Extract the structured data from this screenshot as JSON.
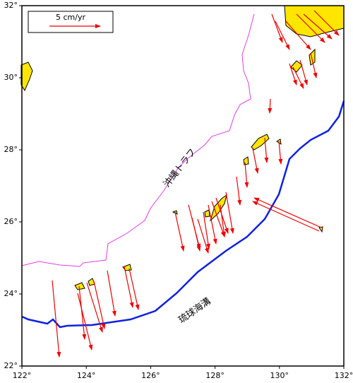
{
  "map": {
    "xlim": [
      122,
      132
    ],
    "ylim": [
      22,
      32
    ],
    "xticks": [
      {
        "value": 122,
        "label": "122°"
      },
      {
        "value": 124,
        "label": "124°"
      },
      {
        "value": 126,
        "label": "126°"
      },
      {
        "value": 128,
        "label": "128°"
      },
      {
        "value": 130,
        "label": "130°"
      },
      {
        "value": 132,
        "label": "132°"
      }
    ],
    "yticks": [
      {
        "value": 22,
        "label": "22°"
      },
      {
        "value": 24,
        "label": "24°"
      },
      {
        "value": 26,
        "label": "26°"
      },
      {
        "value": 28,
        "label": "28°"
      },
      {
        "value": 30,
        "label": "30°"
      },
      {
        "value": 32,
        "label": "32°"
      }
    ],
    "legend": {
      "label": "5 cm/yr"
    },
    "annotations": [
      {
        "text": "沖縄トラフ"
      },
      {
        "text": "琉球海溝"
      }
    ]
  }
}
